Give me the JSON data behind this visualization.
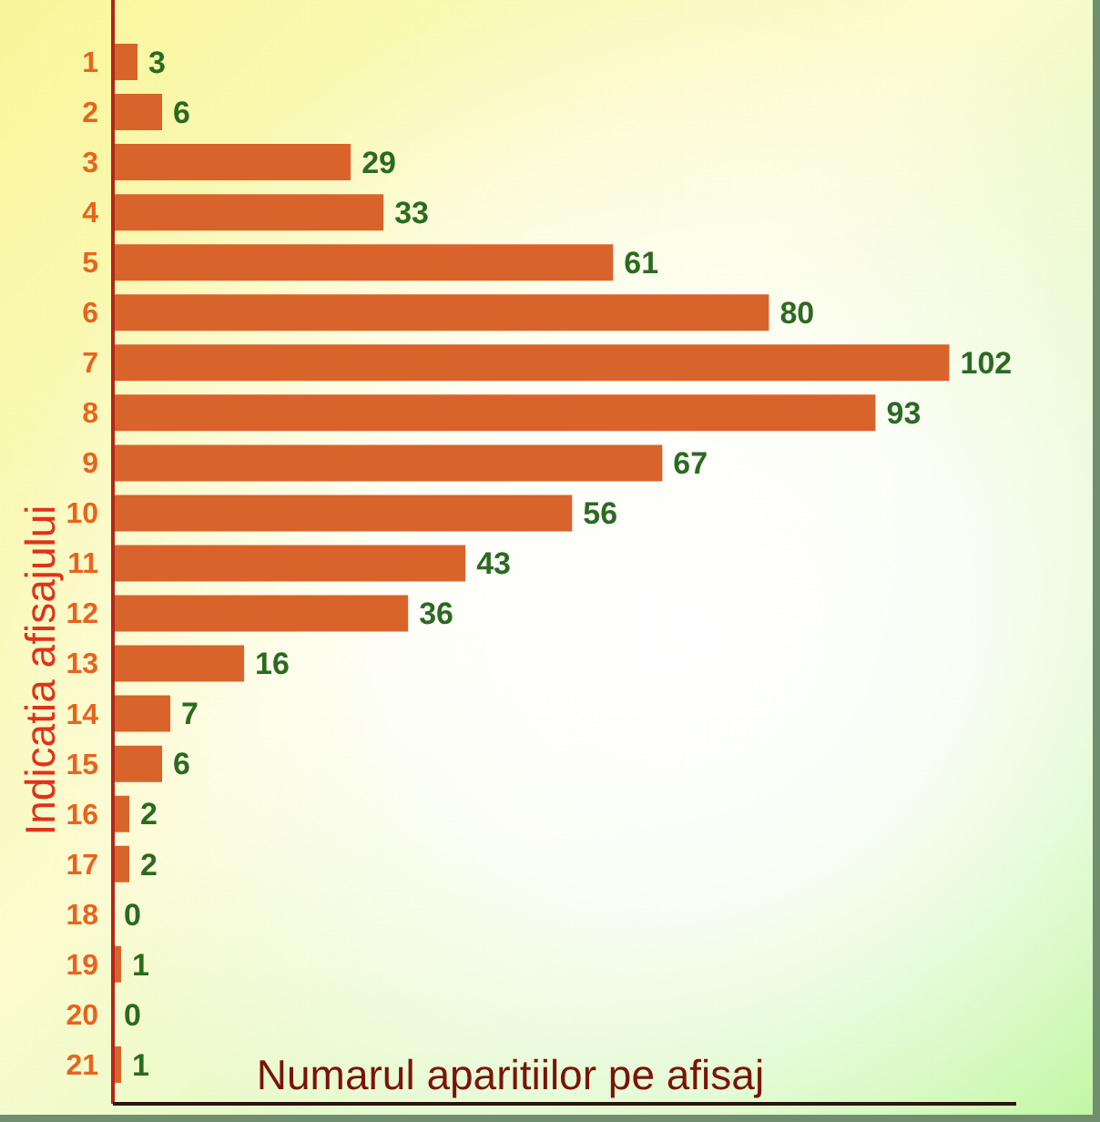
{
  "chart_data": {
    "type": "bar",
    "orientation": "horizontal",
    "xlabel": "Numarul aparitiilor pe afisaj",
    "ylabel": "Indicatia afisajului",
    "categories": [
      "1",
      "2",
      "3",
      "4",
      "5",
      "6",
      "7",
      "8",
      "9",
      "10",
      "11",
      "12",
      "13",
      "14",
      "15",
      "16",
      "17",
      "18",
      "19",
      "20",
      "21"
    ],
    "values": [
      3,
      6,
      29,
      33,
      61,
      80,
      102,
      93,
      67,
      56,
      43,
      36,
      16,
      7,
      6,
      2,
      2,
      0,
      1,
      0,
      1
    ],
    "color": "#d8642c",
    "data_labels": true,
    "tick_labels": "y"
  }
}
